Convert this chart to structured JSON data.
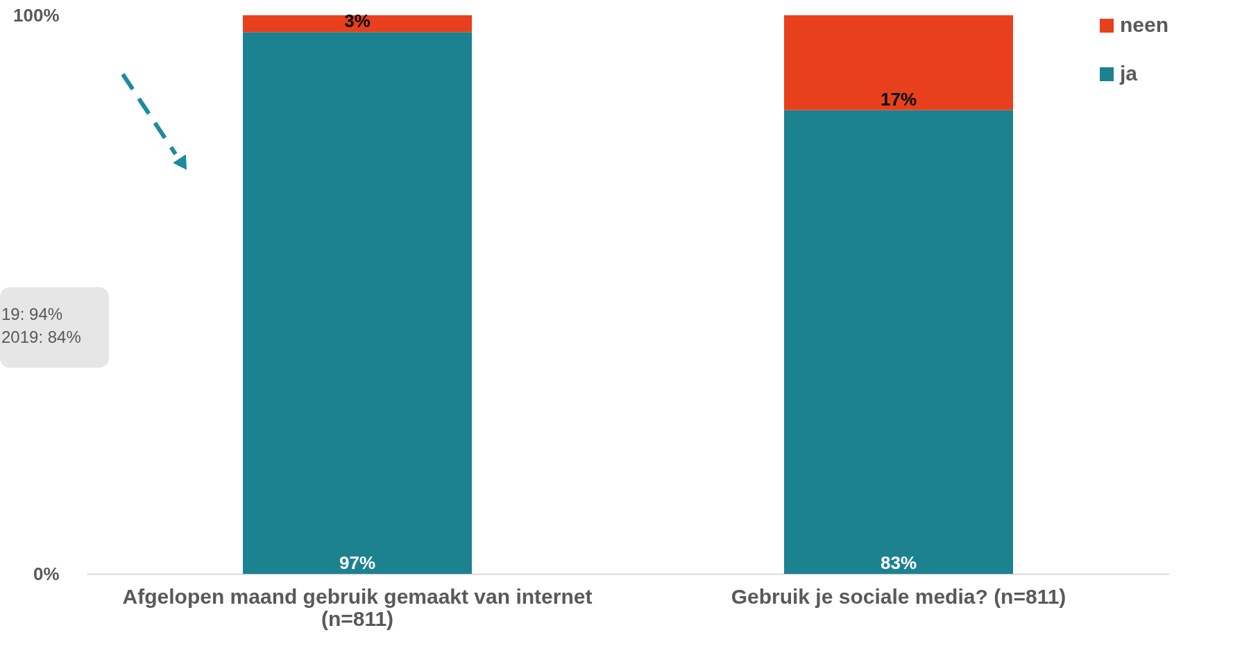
{
  "chart_data": {
    "type": "bar",
    "stacked": true,
    "categories": [
      "Afgelopen maand gebruik gemaakt van internet (n=811)",
      "Gebruik je sociale media? (n=811)"
    ],
    "series": [
      {
        "name": "ja",
        "color": "#1c8290",
        "values": [
          97,
          83
        ],
        "value_labels": [
          "97%",
          "83%"
        ]
      },
      {
        "name": "neen",
        "color": "#e8401c",
        "values": [
          3,
          17
        ],
        "value_labels": [
          "3%",
          "17%"
        ]
      }
    ],
    "ylim": [
      0,
      100
    ],
    "yticks": [
      {
        "value": 0,
        "label": "0%"
      },
      {
        "value": 100,
        "label": "100%"
      }
    ],
    "grid": false,
    "legend": "top right",
    "annotations": [
      "19: 94%",
      "2019: 84%"
    ]
  }
}
